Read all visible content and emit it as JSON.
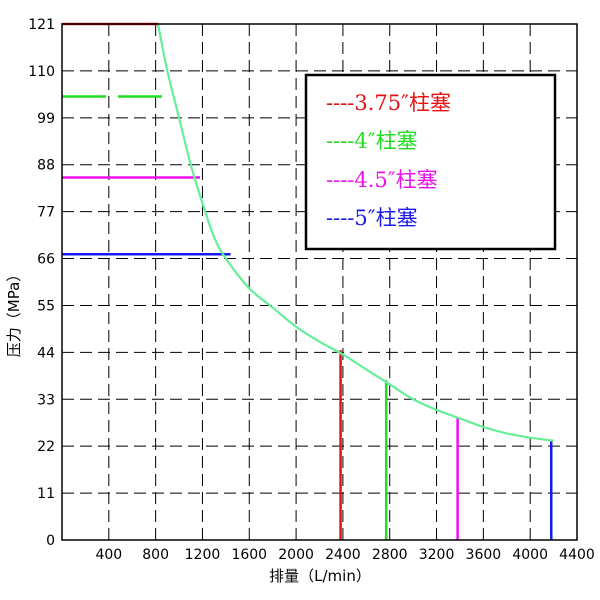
{
  "chart_data": {
    "type": "line",
    "xlabel": "排量（L/min）",
    "ylabel": "压力（MPa）",
    "xlim": [
      0,
      4400
    ],
    "ylim": [
      0,
      121
    ],
    "x_ticks": [
      {
        "value": 400,
        "label": "400"
      },
      {
        "value": 800,
        "label": "800"
      },
      {
        "value": 1200,
        "label": "1200"
      },
      {
        "value": 1600,
        "label": "1600"
      },
      {
        "value": 2000,
        "label": "2000"
      },
      {
        "value": 2400,
        "label": "2400"
      },
      {
        "value": 2800,
        "label": "2800"
      },
      {
        "value": 3200,
        "label": "3200"
      },
      {
        "value": 3600,
        "label": "3600"
      },
      {
        "value": 4000,
        "label": "4000"
      },
      {
        "value": 4400,
        "label": "4400"
      }
    ],
    "y_ticks": [
      {
        "value": 0,
        "label": "0"
      },
      {
        "value": 11,
        "label": "11"
      },
      {
        "value": 22,
        "label": "22"
      },
      {
        "value": 33,
        "label": "33"
      },
      {
        "value": 44,
        "label": "44"
      },
      {
        "value": 55,
        "label": "55"
      },
      {
        "value": 66,
        "label": "66"
      },
      {
        "value": 77,
        "label": "77"
      },
      {
        "value": 88,
        "label": "88"
      },
      {
        "value": 99,
        "label": "99"
      },
      {
        "value": 110,
        "label": "110"
      },
      {
        "value": 121,
        "label": "121"
      }
    ],
    "power_curve": {
      "color": "#66ee99",
      "points": [
        [
          820,
          121
        ],
        [
          900,
          110
        ],
        [
          1000,
          99
        ],
        [
          1100,
          88
        ],
        [
          1200,
          79
        ],
        [
          1300,
          71
        ],
        [
          1400,
          66
        ],
        [
          1600,
          59
        ],
        [
          1800,
          54.5
        ],
        [
          2000,
          50
        ],
        [
          2200,
          46.5
        ],
        [
          2400,
          43.5
        ],
        [
          2600,
          40
        ],
        [
          2800,
          36.5
        ],
        [
          3000,
          33
        ],
        [
          3200,
          30.5
        ],
        [
          3400,
          28.5
        ],
        [
          3600,
          26.5
        ],
        [
          3800,
          25
        ],
        [
          4000,
          24
        ],
        [
          4200,
          23.3
        ]
      ]
    },
    "series": [
      {
        "name": "3.75″柱塞",
        "legend_label": "----3.75″柱塞",
        "color": "#e81010",
        "max_pressure": 121,
        "pressure_end_x": 820,
        "max_flow": 2380,
        "flow_top_y": 44.5
      },
      {
        "name": "4″柱塞",
        "legend_label": "----4″柱塞",
        "color": "#22dd22",
        "max_pressure": 104,
        "pressure_end_x": 920,
        "max_flow": 2770,
        "flow_top_y": 37.5
      },
      {
        "name": "4.5″柱塞",
        "legend_label": "----4.5″柱塞",
        "color": "#ee11ee",
        "max_pressure": 85,
        "pressure_end_x": 1180,
        "max_flow": 3380,
        "flow_top_y": 28.5
      },
      {
        "name": "5″柱塞",
        "legend_label": "----5″柱塞",
        "color": "#1a1aee",
        "max_pressure": 67,
        "pressure_end_x": 1440,
        "max_flow": 4180,
        "flow_top_y": 23.3
      }
    ],
    "legend_position": "top-right",
    "grid": true
  }
}
